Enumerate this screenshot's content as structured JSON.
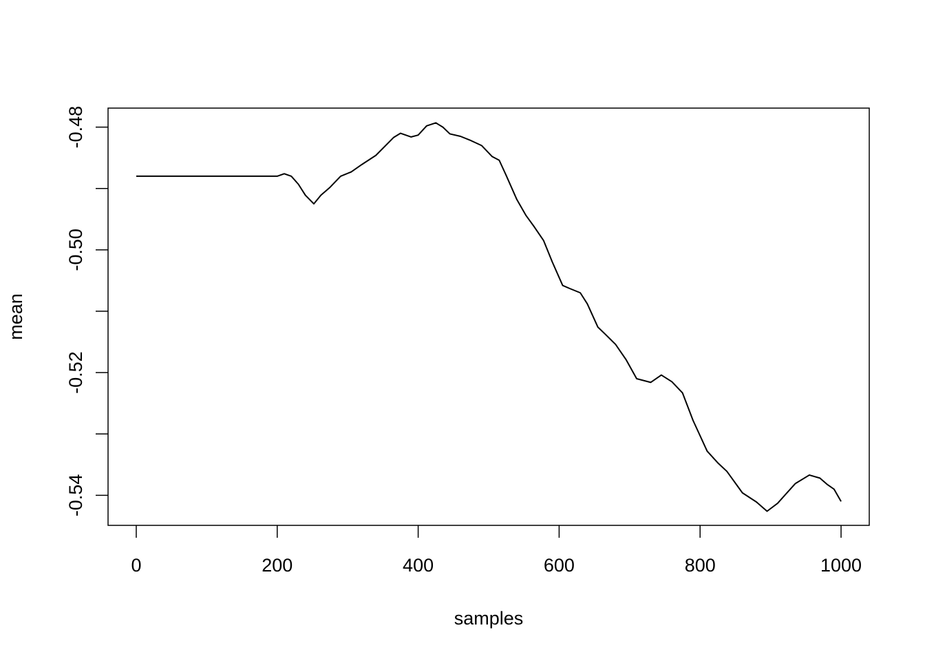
{
  "chart_data": {
    "type": "line",
    "xlabel": "samples",
    "ylabel": "mean",
    "x": [
      0,
      200,
      210,
      220,
      230,
      240,
      252,
      262,
      275,
      290,
      305,
      320,
      340,
      365,
      375,
      390,
      400,
      412,
      425,
      435,
      445,
      460,
      475,
      490,
      505,
      515,
      525,
      540,
      553,
      565,
      578,
      590,
      605,
      615,
      630,
      640,
      655,
      665,
      680,
      695,
      710,
      730,
      745,
      760,
      775,
      790,
      810,
      825,
      838,
      860,
      880,
      895,
      910,
      935,
      955,
      970,
      980,
      990,
      1000
    ],
    "values": [
      -0.488,
      -0.488,
      -0.4876,
      -0.488,
      -0.4893,
      -0.4911,
      -0.4925,
      -0.4911,
      -0.4898,
      -0.488,
      -0.4873,
      -0.4861,
      -0.4846,
      -0.4817,
      -0.481,
      -0.4816,
      -0.4813,
      -0.4798,
      -0.4793,
      -0.48,
      -0.4811,
      -0.4815,
      -0.4822,
      -0.483,
      -0.4848,
      -0.4854,
      -0.4879,
      -0.4918,
      -0.4944,
      -0.4963,
      -0.4985,
      -0.5019,
      -0.5058,
      -0.5063,
      -0.507,
      -0.5088,
      -0.5126,
      -0.5137,
      -0.5154,
      -0.5179,
      -0.521,
      -0.5216,
      -0.5204,
      -0.5215,
      -0.5233,
      -0.5278,
      -0.5328,
      -0.5347,
      -0.5361,
      -0.5396,
      -0.5411,
      -0.5426,
      -0.5413,
      -0.5381,
      -0.5367,
      -0.5372,
      -0.5382,
      -0.539,
      -0.541
    ],
    "color": "#000000",
    "xlim": [
      -40,
      1040
    ],
    "xticks": [
      0,
      200,
      400,
      600,
      800,
      1000
    ],
    "ylim": [
      -0.5449,
      -0.4769
    ],
    "yticks": [
      -0.48,
      {
        "value": -0.5,
        "label": "-0.50"
      },
      -0.52,
      -0.54
    ],
    "yminor_ticks": [
      -0.49,
      -0.51,
      -0.53
    ],
    "grid": false
  }
}
